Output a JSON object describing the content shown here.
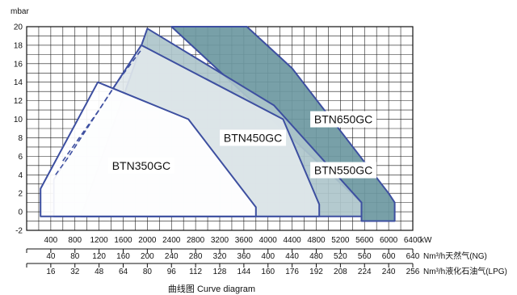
{
  "chart_data": {
    "type": "area",
    "caption": "曲线图 Curve diagram",
    "y_axis": {
      "unit": "mbar",
      "range": [
        -2,
        20
      ],
      "ticks": [
        -2,
        0,
        2,
        4,
        6,
        8,
        10,
        12,
        14,
        16,
        18,
        20
      ]
    },
    "x_axis_kw": {
      "unit": "kW",
      "range": [
        0,
        6400
      ],
      "ticks": [
        400,
        800,
        1200,
        1600,
        2000,
        2400,
        2800,
        3200,
        3600,
        4000,
        4400,
        4800,
        5200,
        5600,
        6000,
        6400
      ]
    },
    "x_axis_ng": {
      "unit": "Nm³/h天然气(NG)",
      "ticks": [
        40,
        80,
        120,
        160,
        200,
        240,
        280,
        320,
        360,
        400,
        440,
        480,
        520,
        560,
        600,
        640
      ]
    },
    "x_axis_lpg": {
      "unit": "Nm³/h液化石油气(LPG)",
      "ticks": [
        16,
        32,
        48,
        64,
        80,
        96,
        112,
        128,
        144,
        160,
        176,
        192,
        208,
        224,
        240,
        256
      ]
    },
    "series": [
      {
        "name": "BTN350GC",
        "color": "#3d4fa0",
        "fill": "#ffffff",
        "x": [
          230,
          230,
          1180,
          2680,
          3800,
          3800,
          230
        ],
        "y": [
          -0.5,
          2.5,
          14,
          10,
          0.5,
          -0.5,
          -0.5
        ]
      },
      {
        "name": "BTN450GC",
        "color": "#3d4fa0",
        "fill": "#dfe7ea",
        "x": [
          450,
          450,
          1900,
          4250,
          4850,
          4850,
          450
        ],
        "y": [
          -0.5,
          3.5,
          18,
          10,
          0.8,
          -0.5,
          -0.5
        ]
      },
      {
        "name": "BTN550GC",
        "color": "#3d4fa0",
        "fill": "#aec6cb",
        "x": [
          900,
          900,
          2000,
          4100,
          5550,
          5550,
          900
        ],
        "y": [
          -0.5,
          -0.5,
          19.8,
          11.5,
          1,
          -0.5,
          -0.5
        ]
      },
      {
        "name": "BTN650GC",
        "color": "#3d4fa0",
        "fill": "#6d98a1",
        "x": [
          2400,
          3650,
          4400,
          6000,
          6100,
          6100,
          5550,
          5550,
          2400
        ],
        "y": [
          20,
          20,
          15.5,
          2,
          1,
          -1,
          -1,
          1,
          20
        ]
      }
    ],
    "dashed_lines": [
      {
        "x": [
          480,
          700,
          1100,
          1500,
          1900
        ],
        "y": [
          4,
          6,
          10,
          14,
          17.5
        ]
      },
      {
        "x": [
          600,
          1200,
          1700
        ],
        "y": [
          5.5,
          11,
          16
        ]
      }
    ],
    "labels": [
      {
        "series": "BTN350GC",
        "text": "BTN350GC",
        "at": [
          1900,
          5
        ]
      },
      {
        "series": "BTN450GC",
        "text": "BTN450GC",
        "at": [
          3750,
          8
        ]
      },
      {
        "series": "BTN650GC",
        "text": "BTN650GC",
        "at": [
          5250,
          10
        ]
      },
      {
        "series": "BTN550GC",
        "text": "BTN550GC",
        "at": [
          5250,
          4.5
        ]
      }
    ],
    "grid": true
  }
}
